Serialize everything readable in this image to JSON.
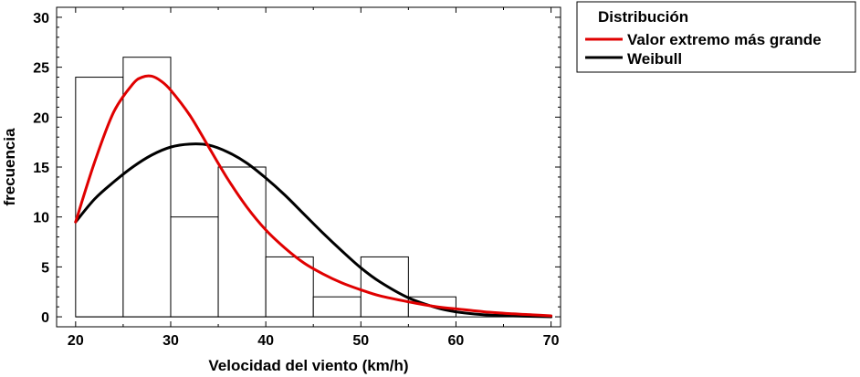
{
  "chart_data": {
    "type": "bar",
    "xlabel": "Velocidad del viento (km/h)",
    "ylabel": "frecuencia",
    "xlim": [
      18,
      71
    ],
    "ylim": [
      -1,
      31
    ],
    "x_ticks": [
      20,
      30,
      40,
      50,
      60,
      70
    ],
    "y_ticks": [
      0,
      5,
      10,
      15,
      20,
      25,
      30
    ],
    "grid": false,
    "histogram": {
      "bins": [
        {
          "from": 20,
          "to": 25,
          "count": 24
        },
        {
          "from": 25,
          "to": 30,
          "count": 26
        },
        {
          "from": 30,
          "to": 35,
          "count": 10
        },
        {
          "from": 35,
          "to": 40,
          "count": 15
        },
        {
          "from": 40,
          "to": 45,
          "count": 6
        },
        {
          "from": 45,
          "to": 50,
          "count": 2
        },
        {
          "from": 50,
          "to": 55,
          "count": 6
        },
        {
          "from": 55,
          "to": 60,
          "count": 2
        },
        {
          "from": 60,
          "to": 65,
          "count": 0
        },
        {
          "from": 65,
          "to": 70,
          "count": 0
        }
      ]
    },
    "legend": {
      "title": "Distribución",
      "placement": "outside-right"
    },
    "series": [
      {
        "name": "Valor extremo más grande",
        "color": "#e00000",
        "type": "line",
        "x": [
          20,
          22,
          24,
          26,
          27,
          28,
          29,
          30,
          32,
          34,
          36,
          38,
          40,
          42,
          44,
          46,
          48,
          50,
          52,
          55,
          58,
          60,
          63,
          66,
          68,
          70
        ],
        "y": [
          9.5,
          15.5,
          20.5,
          23.3,
          24.0,
          24.1,
          23.6,
          22.7,
          20.2,
          17.0,
          13.8,
          11.0,
          8.7,
          6.9,
          5.4,
          4.3,
          3.4,
          2.7,
          2.1,
          1.5,
          1.0,
          0.8,
          0.5,
          0.3,
          0.2,
          0.1
        ]
      },
      {
        "name": "Weibull",
        "color": "#000000",
        "type": "line",
        "x": [
          20,
          22,
          24,
          26,
          28,
          30,
          32,
          34,
          36,
          38,
          40,
          42,
          44,
          46,
          48,
          50,
          52,
          55,
          58,
          60,
          63,
          66,
          70
        ],
        "y": [
          9.5,
          11.8,
          13.5,
          15.0,
          16.2,
          17.0,
          17.3,
          17.2,
          16.5,
          15.4,
          13.9,
          12.2,
          10.3,
          8.4,
          6.6,
          4.9,
          3.5,
          1.9,
          0.9,
          0.5,
          0.2,
          0.1,
          0.0
        ]
      }
    ]
  }
}
